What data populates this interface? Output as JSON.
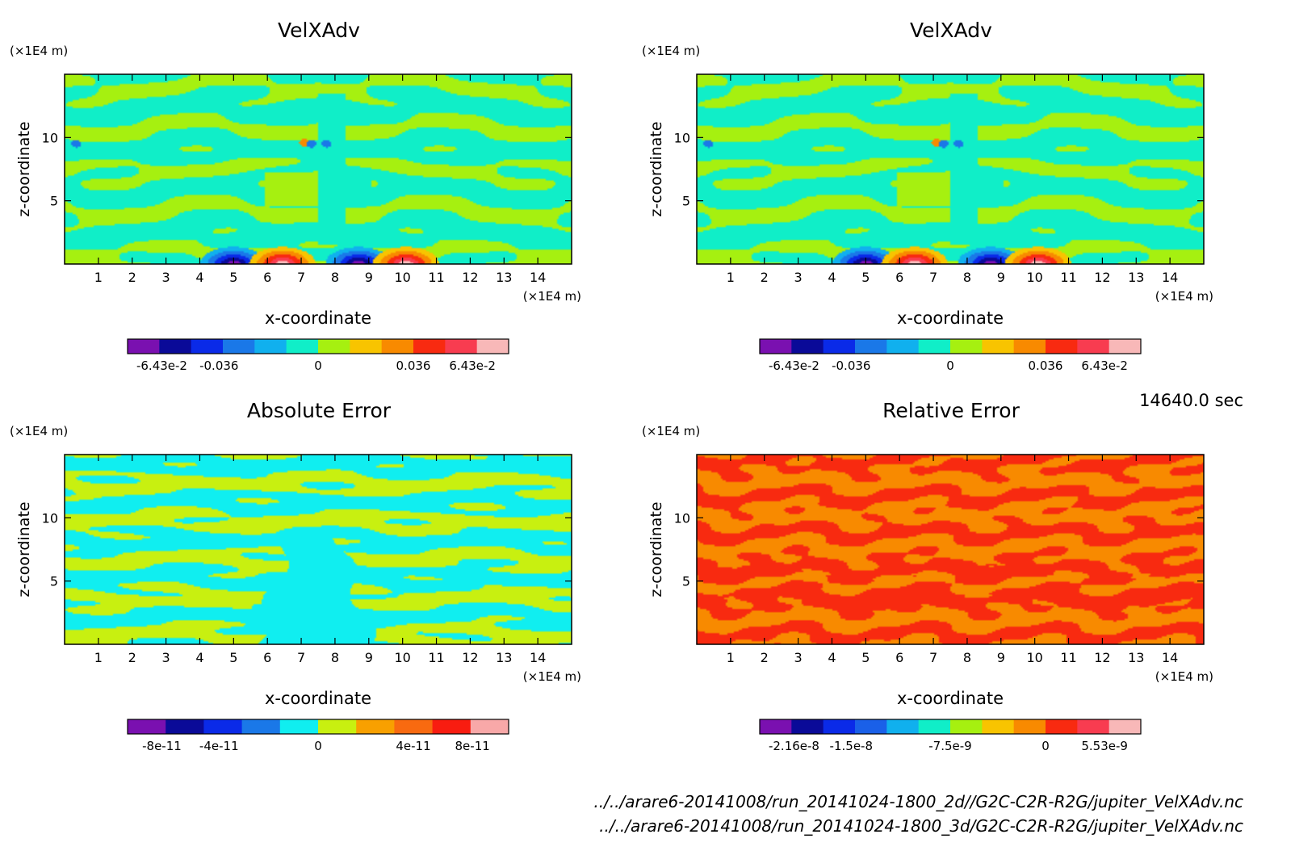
{
  "timestamp": "14640.0 sec",
  "files": [
    "../../arare6-20141008/run_20141024-1800_2d//G2C-C2R-R2G/jupiter_VelXAdv.nc",
    "../../arare6-20141008/run_20141024-1800_3d/G2C-C2R-R2G/jupiter_VelXAdv.nc"
  ],
  "chart_data": [
    {
      "type": "heatmap",
      "title": "VelXAdv",
      "xlabel": "x-coordinate",
      "ylabel": "z-coordinate",
      "x_unit": "(×1E4 m)",
      "y_unit": "(×1E4 m)",
      "xlim": [
        0,
        15
      ],
      "ylim": [
        0,
        15
      ],
      "xticks": [
        1,
        2,
        3,
        4,
        5,
        6,
        7,
        8,
        9,
        10,
        11,
        12,
        13,
        14
      ],
      "yticks": [
        5,
        10
      ],
      "colorbar": {
        "colors": [
          "#7a10b0",
          "#0a0a98",
          "#0a2ae8",
          "#1a78e8",
          "#10b0ee",
          "#10eec8",
          "#a6f010",
          "#f8c400",
          "#f88a00",
          "#f82a10",
          "#f83c50",
          "#f8b8b8"
        ],
        "tick_labels": [
          "-6.43e-2",
          "-0.036",
          "0",
          "0.036",
          "6.43e-2"
        ]
      },
      "field": "velxadv"
    },
    {
      "type": "heatmap",
      "title": "VelXAdv",
      "xlabel": "x-coordinate",
      "ylabel": "z-coordinate",
      "x_unit": "(×1E4 m)",
      "y_unit": "(×1E4 m)",
      "xlim": [
        0,
        15
      ],
      "ylim": [
        0,
        15
      ],
      "xticks": [
        1,
        2,
        3,
        4,
        5,
        6,
        7,
        8,
        9,
        10,
        11,
        12,
        13,
        14
      ],
      "yticks": [
        5,
        10
      ],
      "colorbar": {
        "colors": [
          "#7a10b0",
          "#0a0a98",
          "#0a2ae8",
          "#1a78e8",
          "#10b0ee",
          "#10eec8",
          "#a6f010",
          "#f8c400",
          "#f88a00",
          "#f82a10",
          "#f83c50",
          "#f8b8b8"
        ],
        "tick_labels": [
          "-6.43e-2",
          "-0.036",
          "0",
          "0.036",
          "6.43e-2"
        ]
      },
      "field": "velxadv"
    },
    {
      "type": "heatmap",
      "title": "Absolute Error",
      "xlabel": "x-coordinate",
      "ylabel": "z-coordinate",
      "x_unit": "(×1E4 m)",
      "y_unit": "(×1E4 m)",
      "xlim": [
        0,
        15
      ],
      "ylim": [
        0,
        15
      ],
      "xticks": [
        1,
        2,
        3,
        4,
        5,
        6,
        7,
        8,
        9,
        10,
        11,
        12,
        13,
        14
      ],
      "yticks": [
        5,
        10
      ],
      "colorbar": {
        "colors": [
          "#7a10b0",
          "#0a0a98",
          "#0a2ae8",
          "#1a78e8",
          "#10eef0",
          "#c8f010",
          "#f8a000",
          "#f86a10",
          "#f81c10",
          "#f8a8a8"
        ],
        "tick_labels": [
          "-8e-11",
          "-4e-11",
          "0",
          "4e-11",
          "8e-11"
        ]
      },
      "field": "abs_error"
    },
    {
      "type": "heatmap",
      "title": "Relative Error",
      "xlabel": "x-coordinate",
      "ylabel": "z-coordinate",
      "x_unit": "(×1E4 m)",
      "y_unit": "(×1E4 m)",
      "xlim": [
        0,
        15
      ],
      "ylim": [
        0,
        15
      ],
      "xticks": [
        1,
        2,
        3,
        4,
        5,
        6,
        7,
        8,
        9,
        10,
        11,
        12,
        13,
        14
      ],
      "yticks": [
        5,
        10
      ],
      "colorbar": {
        "colors": [
          "#7a10b0",
          "#0a0a98",
          "#0a2ae8",
          "#1a60e8",
          "#10b0ee",
          "#10eec8",
          "#a6f010",
          "#f8c400",
          "#f88a00",
          "#f82a10",
          "#f83c50",
          "#f8b8b8"
        ],
        "tick_labels": [
          "-2.16e-8",
          "-1.5e-8",
          "-7.5e-9",
          "0",
          "5.53e-9"
        ]
      },
      "field": "rel_error"
    }
  ]
}
